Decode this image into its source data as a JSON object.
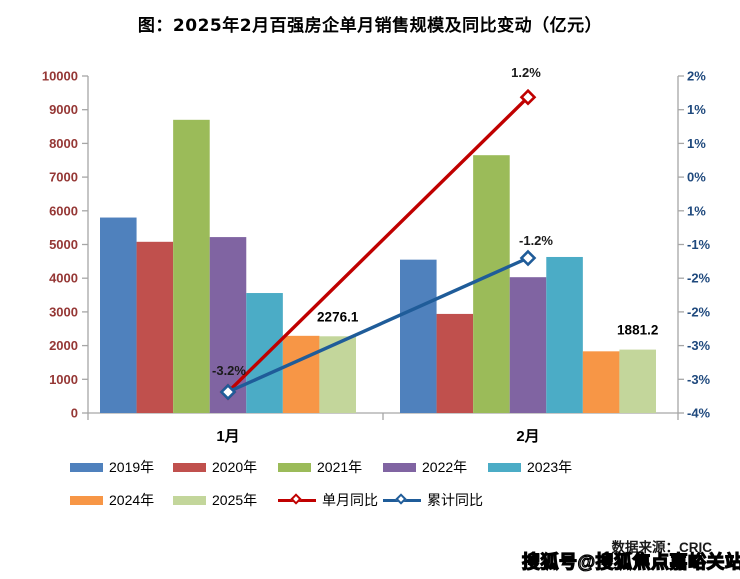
{
  "title": "图：2025年2月百强房企单月销售规模及同比变动（亿元）",
  "source": {
    "text": "数据来源：CRIC"
  },
  "watermark": {
    "text": "搜狐号@搜狐焦点嘉峪关站"
  },
  "chart_data": {
    "type": "bar",
    "subtype": "grouped-bar-with-line-combo",
    "title": "图：2025年2月百强房企单月销售规模及同比变动（亿元）",
    "categories": [
      "1月",
      "2月"
    ],
    "bar_series": [
      {
        "name": "2019年",
        "color": "#4F81BD",
        "values": [
          5800,
          4550
        ]
      },
      {
        "name": "2020年",
        "color": "#C0504D",
        "values": [
          5080,
          2940
        ]
      },
      {
        "name": "2021年",
        "color": "#9BBB59",
        "values": [
          8700,
          7650
        ]
      },
      {
        "name": "2022年",
        "color": "#8064A2",
        "values": [
          5220,
          4030
        ]
      },
      {
        "name": "2023年",
        "color": "#4BACC6",
        "values": [
          3560,
          4630
        ]
      },
      {
        "name": "2024年",
        "color": "#F79646",
        "values": [
          2290,
          1830
        ]
      },
      {
        "name": "2025年",
        "color": "#C3D69B",
        "values": [
          2276.1,
          1881.2
        ]
      }
    ],
    "line_series": [
      {
        "name": "单月同比",
        "color": "#C00000",
        "values_pct": [
          -3.2,
          1.2
        ]
      },
      {
        "name": "累计同比",
        "color": "#1F5C99",
        "values_pct": [
          -3.2,
          -1.2
        ]
      }
    ],
    "bar_value_labels": [
      {
        "series_index": 6,
        "category_index": 0,
        "text": "2276.1"
      },
      {
        "series_index": 6,
        "category_index": 1,
        "text": "1881.2"
      }
    ],
    "line_value_labels": [
      {
        "series_index": 0,
        "category_index": 0,
        "text": "-3.2%"
      },
      {
        "series_index": 0,
        "category_index": 1,
        "text": "1.2%"
      },
      {
        "series_index": 1,
        "category_index": 1,
        "text": "-1.2%"
      }
    ],
    "left_axis": {
      "min": 0,
      "max": 10000,
      "step": 1000,
      "tick_labels": [
        "0",
        "1000",
        "2000",
        "3000",
        "4000",
        "5000",
        "6000",
        "7000",
        "8000",
        "9000",
        "10000"
      ],
      "label_color": "#953735"
    },
    "right_axis": {
      "tick_labels_top_to_bottom": [
        "2%",
        "1%",
        "1%",
        "0%",
        "1%",
        "-1%",
        "-2%",
        "-2%",
        "-3%",
        "-3%",
        "-4%"
      ],
      "label_color": "#1F497D"
    },
    "grid": false,
    "legend_position": "bottom",
    "legend_rows": [
      [
        "2019年",
        "2020年",
        "2021年",
        "2022年",
        "2023年"
      ],
      [
        "2024年",
        "2025年",
        "单月同比",
        "累计同比"
      ]
    ]
  }
}
